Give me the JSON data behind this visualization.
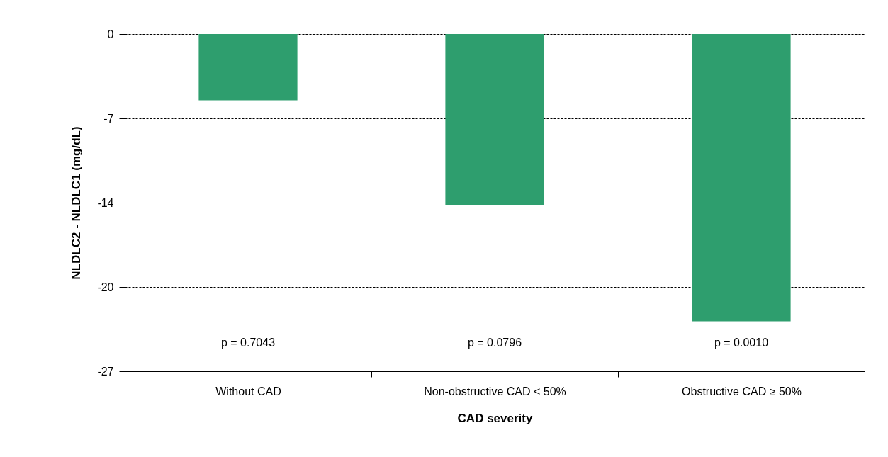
{
  "chart_data": {
    "type": "bar",
    "xlabel": "CAD severity",
    "ylabel": "NLDLC2 - NLDLC1 (mg/dL)",
    "categories": [
      "Without CAD",
      "Non-obstructive CAD < 50%",
      "Obstructive CAD ≥ 50%"
    ],
    "values": [
      -5.3,
      -13.7,
      -23.0
    ],
    "color": "#2e9e6e",
    "ylim": [
      -27,
      0
    ],
    "yticks": [
      0,
      {
        "value": -6.75,
        "label": "-7"
      },
      {
        "value": -13.5,
        "label": "-14"
      },
      {
        "value": -20.25,
        "label": "-20"
      },
      -27
    ],
    "grid": "y",
    "annotations": [
      "p = 0.7043",
      "p = 0.0796",
      "p = 0.0010"
    ]
  }
}
